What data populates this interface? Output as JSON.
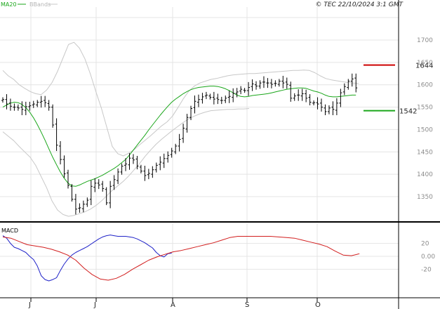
{
  "copyright": "© TEC 22/10/2024 3:1 GMT",
  "colors": {
    "price": "#000000",
    "ma": "#1aa61a",
    "bands": "#c8c8c8",
    "macd": "#1f22c8",
    "signal": "#d21e1e",
    "resistance": "#cc0000",
    "support": "#1aa61a",
    "grid": "#e4e4e4"
  },
  "chart_data": [
    {
      "type": "bar",
      "title": "",
      "legend": [
        {
          "name": "MA20",
          "color": "#1aa61a"
        },
        {
          "name": "BBands",
          "color": "#c8c8c8"
        }
      ],
      "legend_position": "top-left",
      "ylim": [
        1300,
        1750
      ],
      "y_ticks": [
        "1350",
        "1400",
        "1450",
        "1500",
        "1550",
        "1600",
        "1650",
        "1700"
      ],
      "x_ticks": [
        "J",
        "J",
        "A",
        "S",
        "O"
      ],
      "grid": true,
      "levels": [
        {
          "name": "resistance",
          "value": 1644,
          "label": "1644",
          "color": "#cc0000"
        },
        {
          "name": "support",
          "value": 1542,
          "label": "1542",
          "color": "#1aa61a"
        }
      ],
      "close": [
        1567,
        1557,
        1552,
        1550,
        1548,
        1545,
        1551,
        1553,
        1557,
        1561,
        1563,
        1560,
        1550,
        1510,
        1465,
        1433,
        1401,
        1375,
        1344,
        1322,
        1325,
        1333,
        1342,
        1373,
        1380,
        1376,
        1368,
        1336,
        1373,
        1388,
        1405,
        1418,
        1423,
        1436,
        1432,
        1418,
        1407,
        1397,
        1402,
        1410,
        1420,
        1427,
        1435,
        1442,
        1452,
        1463,
        1478,
        1503,
        1527,
        1547,
        1563,
        1567,
        1573,
        1577,
        1572,
        1568,
        1567,
        1565,
        1570,
        1574,
        1581,
        1584,
        1590,
        1587,
        1594,
        1602,
        1597,
        1604,
        1606,
        1604,
        1601,
        1603,
        1608,
        1604,
        1601,
        1570,
        1575,
        1577,
        1580,
        1570,
        1561,
        1560,
        1557,
        1550,
        1540,
        1548,
        1545,
        1559,
        1582,
        1596,
        1608,
        1613,
        1593
      ],
      "bands_upper": [
        1632,
        1620,
        1612,
        1600,
        1592,
        1585,
        1580,
        1578,
        1588,
        1605,
        1630,
        1660,
        1690,
        1695,
        1682,
        1658,
        1624,
        1585,
        1548,
        1505,
        1462,
        1446,
        1441,
        1447,
        1455,
        1466,
        1476,
        1486,
        1497,
        1508,
        1517,
        1530,
        1549,
        1569,
        1586,
        1597,
        1604,
        1608,
        1612,
        1614,
        1617,
        1620,
        1622,
        1623,
        1624,
        1625,
        1625,
        1626,
        1627,
        1628,
        1629,
        1630,
        1631,
        1632,
        1632,
        1633,
        1632,
        1627,
        1620,
        1614,
        1611,
        1609,
        1607,
        1605,
        1604,
        1603
      ],
      "ma20": [
        1550,
        1555,
        1559,
        1561,
        1560,
        1556,
        1549,
        1539,
        1526,
        1511,
        1494,
        1476,
        1457,
        1438,
        1421,
        1405,
        1391,
        1380,
        1374,
        1373,
        1376,
        1380,
        1384,
        1387,
        1390,
        1394,
        1398,
        1403,
        1408,
        1413,
        1419,
        1426,
        1433,
        1443,
        1454,
        1465,
        1476,
        1487,
        1499,
        1510,
        1521,
        1532,
        1542,
        1552,
        1561,
        1568,
        1574,
        1580,
        1585,
        1589,
        1592,
        1594,
        1595,
        1596,
        1597,
        1597,
        1596,
        1594,
        1591,
        1587,
        1582,
        1577,
        1574,
        1573,
        1574,
        1576,
        1577,
        1578,
        1579,
        1580,
        1582,
        1584,
        1586,
        1588,
        1590,
        1591,
        1592,
        1593,
        1593,
        1592,
        1589,
        1586,
        1584,
        1581,
        1577,
        1574,
        1573,
        1573,
        1574,
        1575,
        1576,
        1577,
        1577
      ],
      "bands_lower": [
        1495,
        1485,
        1475,
        1462,
        1450,
        1438,
        1420,
        1395,
        1370,
        1340,
        1320,
        1310,
        1306,
        1308,
        1312,
        1316,
        1322,
        1330,
        1340,
        1352,
        1364,
        1374,
        1384,
        1396,
        1410,
        1424,
        1440,
        1454,
        1467,
        1478,
        1488,
        1498,
        1507,
        1516,
        1524,
        1530,
        1535,
        1539,
        1542,
        1543,
        1544,
        1545,
        1545,
        1546,
        1546,
        1547
      ]
    },
    {
      "type": "line",
      "title": "",
      "legend": [
        {
          "name": "MACD",
          "color": "#000000"
        }
      ],
      "ylim": [
        -45,
        45
      ],
      "y_ticks": [
        "20",
        "0.00",
        "-20"
      ],
      "series": [
        {
          "name": "macd",
          "color": "#1f22c8",
          "values": [
            32,
            28,
            20,
            14,
            12,
            9,
            6,
            0,
            -5,
            -15,
            -30,
            -36,
            -38,
            -36,
            -33,
            -22,
            -12,
            -4,
            2,
            6,
            9,
            12,
            15,
            19,
            23,
            27,
            30,
            32,
            33,
            32,
            31,
            31,
            31,
            30,
            29,
            27,
            24,
            21,
            17,
            13,
            6,
            1,
            -1,
            4,
            5
          ]
        },
        {
          "name": "signal",
          "color": "#d21e1e",
          "values": [
            30,
            28,
            23,
            18,
            16,
            14,
            11,
            7,
            2,
            -6,
            -18,
            -28,
            -35,
            -37,
            -34,
            -28,
            -20,
            -13,
            -6,
            -1,
            3,
            7,
            9,
            12,
            15,
            18,
            21,
            25,
            29,
            31,
            31,
            31,
            31,
            31,
            30,
            29,
            28,
            25,
            22,
            19,
            15,
            8,
            2,
            1,
            4
          ]
        }
      ]
    }
  ]
}
